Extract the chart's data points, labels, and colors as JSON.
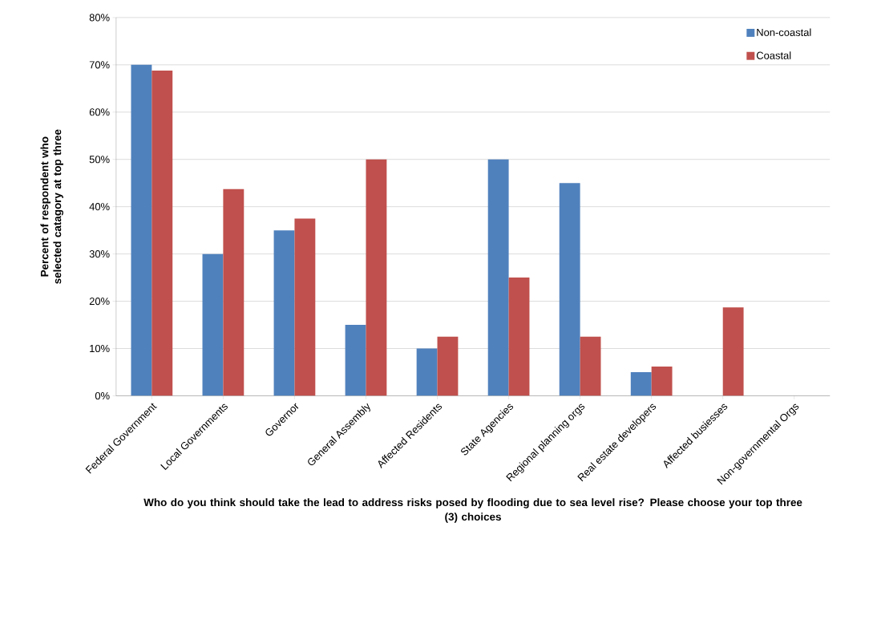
{
  "chart_data": {
    "type": "bar",
    "xlabel": "Who do you think should take the lead to address risks posed by flooding due to sea level rise?  Please choose your top three (3) choices",
    "ylabel": "Percent of respondent who selected catagory at top three",
    "categories": [
      "Federal Government",
      "Local Governments",
      "Governor",
      "General Assembly",
      "Affected Residents",
      "State Agencies",
      "Regional planning orgs",
      "Real estate developers",
      "Affected busiesses",
      "Non-governmental Orgs"
    ],
    "series": [
      {
        "name": "Non-coastal",
        "color": "#4f81bd",
        "values": [
          70,
          30,
          35,
          15,
          10,
          50,
          45,
          5,
          0,
          0
        ]
      },
      {
        "name": "Coastal",
        "color": "#c0504d",
        "values": [
          68.8,
          43.7,
          37.5,
          50,
          12.5,
          25,
          12.5,
          6.2,
          18.7,
          0
        ]
      }
    ],
    "ylim": [
      0,
      80
    ],
    "yticks": [
      {
        "value": 0,
        "label": "0%"
      },
      {
        "value": 10,
        "label": "10%"
      },
      {
        "value": 20,
        "label": "20%"
      },
      {
        "value": 30,
        "label": "30%"
      },
      {
        "value": 40,
        "label": "40%"
      },
      {
        "value": 50,
        "label": "50%"
      },
      {
        "value": 60,
        "label": "60%"
      },
      {
        "value": 70,
        "label": "70%"
      },
      {
        "value": 80,
        "label": "80%"
      }
    ],
    "grid": "y",
    "legend": "top right"
  }
}
